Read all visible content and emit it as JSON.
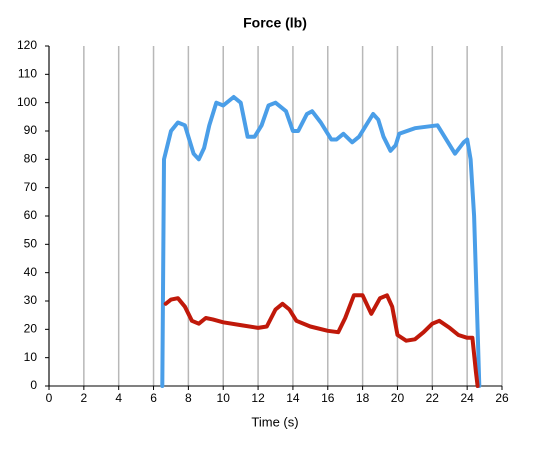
{
  "chart_data": {
    "type": "line",
    "title": "Force (lb)",
    "x_label": "Time (s)",
    "xlim": [
      0,
      26
    ],
    "xticks": [
      0,
      2,
      4,
      6,
      8,
      10,
      12,
      14,
      16,
      18,
      20,
      22,
      24,
      26
    ],
    "ylim": [
      0,
      120
    ],
    "yticks": [
      0,
      10,
      20,
      30,
      40,
      50,
      60,
      70,
      80,
      90,
      100,
      110,
      120
    ],
    "grid": "x",
    "series": [
      {
        "color": "#4a9ee8",
        "x": [
          6.5,
          6.6,
          7.0,
          7.4,
          7.8,
          8.3,
          8.6,
          8.9,
          9.2,
          9.6,
          10.0,
          10.6,
          11.0,
          11.4,
          11.8,
          12.2,
          12.6,
          13.0,
          13.6,
          14.0,
          14.3,
          14.8,
          15.1,
          15.6,
          16.2,
          16.5,
          16.9,
          17.4,
          17.8,
          18.3,
          18.6,
          18.9,
          19.2,
          19.6,
          19.9,
          20.1,
          21.0,
          22.3,
          22.9,
          23.3,
          23.8,
          24.0,
          24.2,
          24.4,
          24.6,
          24.7
        ],
        "values": [
          0,
          80,
          90,
          93,
          92,
          82,
          80,
          84,
          92,
          100,
          99,
          102,
          100,
          88,
          88,
          92,
          99,
          100,
          97,
          90,
          90,
          96,
          97,
          93,
          87,
          87,
          89,
          86,
          88,
          93,
          96,
          94,
          88,
          83,
          85,
          89,
          91,
          92,
          86,
          82,
          86,
          87,
          80,
          60,
          20,
          0
        ]
      },
      {
        "color": "#c0190a",
        "x": [
          6.7,
          7.0,
          7.4,
          7.8,
          8.2,
          8.6,
          9.0,
          9.4,
          10.0,
          11.0,
          12.0,
          12.5,
          13.0,
          13.4,
          13.8,
          14.2,
          15.0,
          16.0,
          16.6,
          17.0,
          17.5,
          18.0,
          18.5,
          19.0,
          19.4,
          19.7,
          20.0,
          20.5,
          21.0,
          21.5,
          22.0,
          22.4,
          23.0,
          23.5,
          24.0,
          24.3,
          24.5,
          24.6
        ],
        "values": [
          29,
          30.5,
          31,
          28,
          23,
          22,
          24,
          23.5,
          22.5,
          21.5,
          20.5,
          21,
          27,
          29,
          27,
          23,
          21,
          19.5,
          19,
          24,
          32,
          32,
          25.5,
          31,
          32,
          28,
          18,
          16,
          16.5,
          19,
          22,
          23,
          20.5,
          18,
          17,
          17,
          5,
          0
        ]
      }
    ]
  }
}
